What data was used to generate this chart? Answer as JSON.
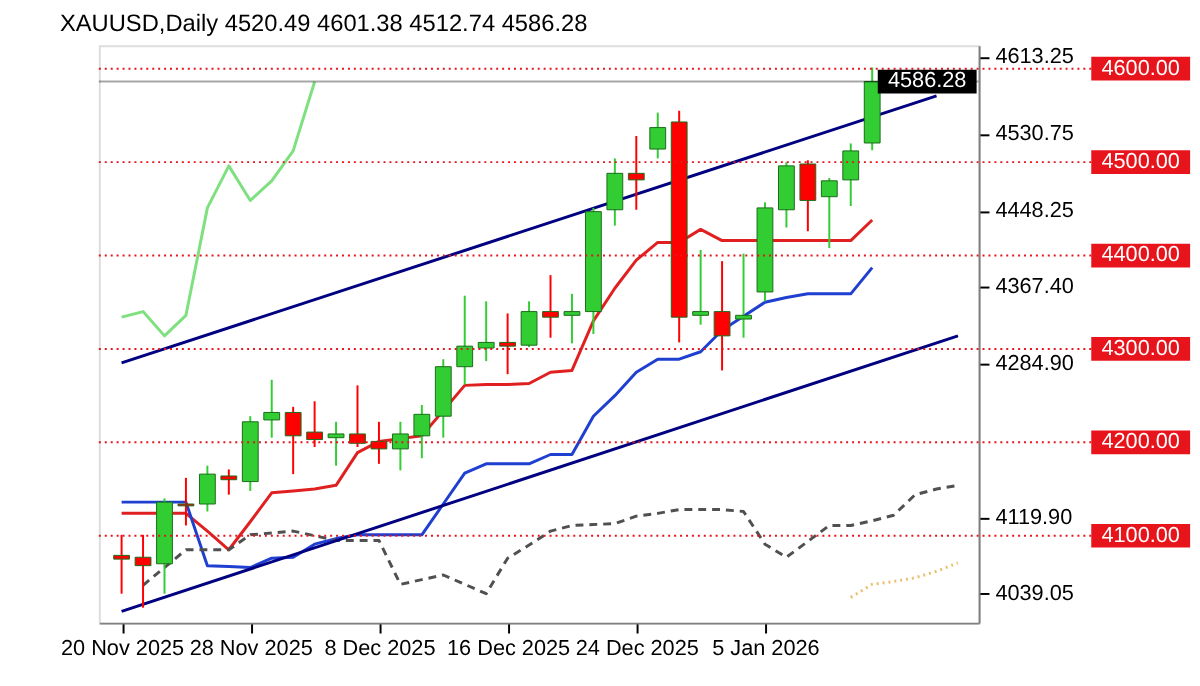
{
  "chart_data": {
    "type": "candlestick",
    "title": "XAUUSD,Daily 4520.49 4601.38 4512.74 4586.28",
    "categories": [
      "20 Nov 2025",
      null,
      null,
      null,
      null,
      null,
      "28 Nov 2025",
      null,
      null,
      null,
      null,
      null,
      "8 Dec 2025",
      null,
      null,
      null,
      null,
      null,
      "16 Dec 2025",
      null,
      null,
      null,
      null,
      null,
      "24 Dec 2025",
      null,
      null,
      null,
      null,
      null,
      "5 Jan 2026",
      null,
      null,
      null,
      null,
      null,
      null,
      null,
      null,
      null
    ],
    "ohlc": [
      [
        4079,
        4101,
        4038,
        4075
      ],
      [
        4077,
        4101,
        4023,
        4068
      ],
      [
        4070,
        4140,
        4038,
        4136
      ],
      [
        4134,
        4162,
        4111,
        4132
      ],
      [
        4134,
        4175,
        4126,
        4166
      ],
      [
        4164,
        4171,
        4144,
        4160
      ],
      [
        4158,
        4228,
        4148,
        4222
      ],
      [
        4224,
        4267,
        4205,
        4232
      ],
      [
        4232,
        4238,
        4166,
        4207
      ],
      [
        4211,
        4244,
        4195,
        4203
      ],
      [
        4205,
        4222,
        4175,
        4209
      ],
      [
        4209,
        4261,
        4195,
        4199
      ],
      [
        4201,
        4222,
        4177,
        4193
      ],
      [
        4193,
        4222,
        4170,
        4209
      ],
      [
        4207,
        4240,
        4183,
        4230
      ],
      [
        4228,
        4289,
        4205,
        4281
      ],
      [
        4281,
        4357,
        4262,
        4303
      ],
      [
        4301,
        4351,
        4287,
        4307
      ],
      [
        4307,
        4338,
        4273,
        4303
      ],
      [
        4304,
        4351,
        4302,
        4340
      ],
      [
        4340,
        4379,
        4312,
        4334
      ],
      [
        4336,
        4359,
        4306,
        4340
      ],
      [
        4340,
        4451,
        4316,
        4447
      ],
      [
        4449,
        4504,
        4432,
        4488
      ],
      [
        4488,
        4528,
        4449,
        4481
      ],
      [
        4514,
        4553,
        4504,
        4537
      ],
      [
        4543,
        4555,
        4307,
        4334
      ],
      [
        4336,
        4406,
        4326,
        4340
      ],
      [
        4340,
        4394,
        4277,
        4314
      ],
      [
        4332,
        4402,
        4312,
        4336
      ],
      [
        4361,
        4457,
        4351,
        4451
      ],
      [
        4449,
        4500,
        4430,
        4496
      ],
      [
        4498,
        4502,
        4426,
        4459
      ],
      [
        4463,
        4483,
        4408,
        4480
      ],
      [
        4481,
        4520,
        4453,
        4512
      ],
      [
        4520.49,
        4601.38,
        4512.74,
        4586.28
      ],
      null,
      null,
      null,
      null
    ],
    "colors": [
      "#ff0000",
      "#ff0000",
      "#32cd32",
      "#ff0000",
      "#32cd32",
      "#ff0000",
      "#32cd32",
      "#32cd32",
      "#ff0000",
      "#ff0000",
      "#32cd32",
      "#ff0000",
      "#ff0000",
      "#32cd32",
      "#32cd32",
      "#32cd32",
      "#32cd32",
      "#32cd32",
      "#ff0000",
      "#32cd32",
      "#ff0000",
      "#32cd32",
      "#32cd32",
      "#32cd32",
      "#ff0000",
      "#32cd32",
      "#ff0000",
      "#32cd32",
      "#ff0000",
      "#32cd32",
      "#32cd32",
      "#32cd32",
      "#ff0000",
      "#32cd32",
      "#32cd32",
      "#32cd32",
      null,
      null,
      null,
      null
    ],
    "series": [
      {
        "type": "line",
        "color": "#e02020",
        "line_style": "solid",
        "values": [
          4124,
          4124,
          null,
          4124,
          4105,
          4085,
          4115,
          4146,
          4148,
          4150,
          4154,
          4189,
          4201,
          4204,
          4207,
          4234,
          4261,
          4262,
          4262,
          4263,
          4275,
          4277,
          4330,
          4365,
          4395,
          4414,
          4414,
          4428,
          4416,
          4416,
          null,
          4416,
          4416,
          4416,
          4416,
          4438,
          null,
          null,
          null,
          null
        ]
      },
      {
        "type": "line",
        "color": "#1f3fd0",
        "line_style": "solid",
        "values": [
          4136,
          4136,
          4136,
          4136,
          4068,
          4067,
          4066,
          4076,
          4077,
          4091,
          4097,
          4101,
          4101,
          4101,
          4101,
          4134,
          4167,
          4177,
          4177,
          4177,
          4187,
          4187,
          4228,
          4250,
          4275,
          4289,
          4289,
          4297,
          4320,
          4335,
          4350,
          4355,
          4359,
          4359,
          4359,
          4387,
          null,
          null,
          null,
          null
        ]
      },
      {
        "type": "line",
        "color": "#7ee07e",
        "line_style": "solid",
        "values": [
          4334,
          4340,
          4314,
          4336,
          4451,
          4496,
          4459,
          4480,
          4512,
          4586,
          null,
          null,
          null,
          null,
          null,
          null,
          null,
          null,
          null,
          null,
          null,
          null,
          null,
          null,
          null,
          null,
          null,
          null,
          null,
          null,
          null,
          null,
          null,
          null,
          null,
          null,
          null,
          null,
          null,
          null
        ]
      },
      {
        "type": "line",
        "color": "#505050",
        "line_style": "dashed",
        "values": [
          null,
          4047,
          null,
          4085,
          4085,
          4085,
          4101,
          4103,
          4105,
          4100,
          4095,
          4095,
          4095,
          4048,
          4053,
          4058,
          4048,
          4038,
          4076,
          4090,
          4105,
          4111,
          4112,
          4113,
          4121,
          4124,
          4128,
          4128,
          4128,
          4126,
          4091,
          4077,
          4094,
          4111,
          4111,
          4116,
          4122,
          4144,
          4150,
          4154
        ]
      },
      {
        "type": "line",
        "color": "#e8c070",
        "line_style": "dotted",
        "values": [
          null,
          null,
          null,
          null,
          null,
          null,
          null,
          null,
          null,
          null,
          null,
          null,
          null,
          null,
          null,
          null,
          null,
          null,
          null,
          null,
          null,
          null,
          null,
          null,
          null,
          null,
          null,
          null,
          null,
          null,
          null,
          null,
          null,
          null,
          4034,
          4048,
          4051,
          4055,
          4062,
          4071
        ]
      },
      {
        "type": "line",
        "color": "#000080",
        "line_style": "solid",
        "values": [
          4285,
          null,
          null,
          null,
          null,
          null,
          null,
          null,
          null,
          null,
          null,
          null,
          null,
          null,
          null,
          null,
          null,
          null,
          null,
          null,
          null,
          null,
          null,
          null,
          null,
          null,
          null,
          null,
          null,
          null,
          null,
          null,
          null,
          null,
          null,
          null,
          null,
          null,
          4571,
          null
        ]
      },
      {
        "type": "line",
        "color": "#000080",
        "line_style": "solid",
        "values": [
          4019,
          null,
          null,
          null,
          null,
          null,
          null,
          null,
          null,
          null,
          null,
          null,
          null,
          null,
          null,
          null,
          null,
          null,
          null,
          null,
          null,
          null,
          null,
          null,
          null,
          null,
          null,
          null,
          null,
          null,
          null,
          null,
          null,
          null,
          null,
          null,
          null,
          null,
          null,
          4314
        ]
      }
    ],
    "ylim": [
      4007,
      4625
    ],
    "yticks": [
      4613.25,
      4530.75,
      4448.25,
      {
        "value": 4367.4,
        "label": "4367.40"
      },
      {
        "value": 4284.9,
        "label": "4284.90"
      },
      {
        "value": 4119.9,
        "label": "4119.90"
      },
      4039.05
    ],
    "ref_lines": [
      {
        "axis": "y",
        "value": 4600,
        "label": "4600.00",
        "color": "#e8141c",
        "line_style": "dotted"
      },
      {
        "axis": "y",
        "value": 4586.28,
        "label": "4586.28",
        "color": "#000000",
        "line_style": "solid"
      },
      {
        "axis": "y",
        "value": 4500,
        "label": "4500.00",
        "color": "#e8141c",
        "line_style": "dotted"
      },
      {
        "axis": "y",
        "value": 4400,
        "label": "4400.00",
        "color": "#e8141c",
        "line_style": "dotted"
      },
      {
        "axis": "y",
        "value": 4300,
        "label": "4300.00",
        "color": "#e8141c",
        "line_style": "dotted"
      },
      {
        "axis": "y",
        "value": 4200,
        "label": "4200.00",
        "color": "#e8141c",
        "line_style": "dotted"
      },
      {
        "axis": "y",
        "value": 4100,
        "label": "4100.00",
        "color": "#e8141c",
        "line_style": "dotted"
      }
    ]
  }
}
